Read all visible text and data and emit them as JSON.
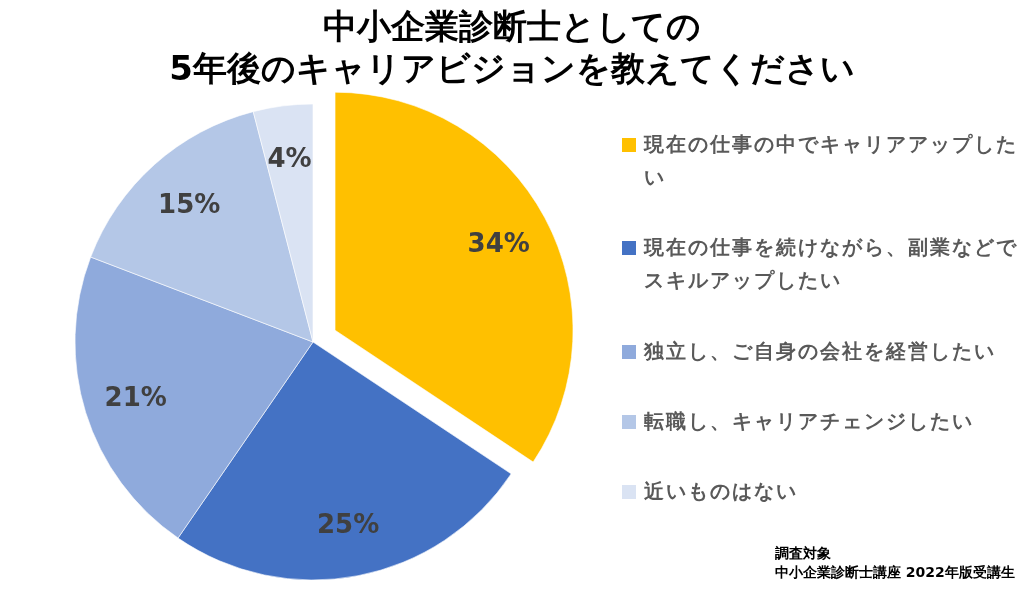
{
  "chart_data": {
    "type": "pie",
    "title": "中小企業診断士としての\n5年後のキャリアビジョンを教えてください",
    "categories": [
      "現在の仕事の中でキャリアアップしたい",
      "現在の仕事を続けながら、副業などでスキルアップしたい",
      "独立し、ご自身の会社を経営したい",
      "転職し、キャリアチェンジしたい",
      "近いものはない"
    ],
    "values": [
      34,
      25,
      21,
      15,
      4
    ],
    "value_labels": [
      "34%",
      "25%",
      "21%",
      "15%",
      "4%"
    ],
    "colors": [
      "#ffc000",
      "#4472c4",
      "#8faadc",
      "#b4c7e7",
      "#dae3f3"
    ],
    "legend": "right",
    "annotations": [
      "調査対象",
      "中小企業診断士講座 2022年版受講生"
    ]
  }
}
